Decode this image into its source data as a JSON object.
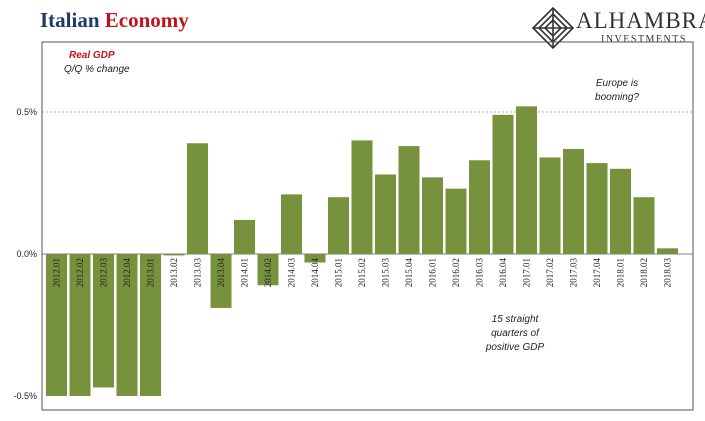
{
  "header": {
    "title_part1": "Italian",
    "title_part2": "Economy"
  },
  "logo": {
    "name": "ALHAMBRA",
    "sub": "INVESTMENTS",
    "icon": "diamond-lattice-icon"
  },
  "chart_data": {
    "type": "bar",
    "legend_title": "Real GDP",
    "legend_subtitle": "Q/Q % change",
    "annotation_top": [
      "Europe is",
      "booming?"
    ],
    "annotation_bottom": [
      "15 straight",
      "quarters of",
      "positive GDP"
    ],
    "yticks": [
      "0.5%",
      "0.0%",
      "-0.5%"
    ],
    "ytick_values": [
      0.5,
      0.0,
      -0.5
    ],
    "ylim": [
      -0.5,
      0.75
    ],
    "grid": "dashed line at 0.5%",
    "bar_color": "#77923c",
    "categories": [
      "2012.01",
      "2012.02",
      "2012.03",
      "2012.04",
      "2013.01",
      "2013.02",
      "2013.03",
      "2013.04",
      "2014.01",
      "2014.02",
      "2014.03",
      "2014.04",
      "2015.01",
      "2015.02",
      "2015.03",
      "2015.04",
      "2016.01",
      "2016.02",
      "2016.03",
      "2016.04",
      "2017.01",
      "2017.02",
      "2017.03",
      "2017.04",
      "2018.01",
      "2018.02",
      "2018.03"
    ],
    "values": [
      -0.5,
      -0.5,
      -0.47,
      -0.5,
      -0.5,
      -0.005,
      0.39,
      -0.19,
      0.12,
      -0.11,
      0.21,
      -0.03,
      0.2,
      0.4,
      0.28,
      0.38,
      0.27,
      0.23,
      0.33,
      0.49,
      0.52,
      0.34,
      0.37,
      0.32,
      0.3,
      0.2,
      0.02
    ]
  }
}
